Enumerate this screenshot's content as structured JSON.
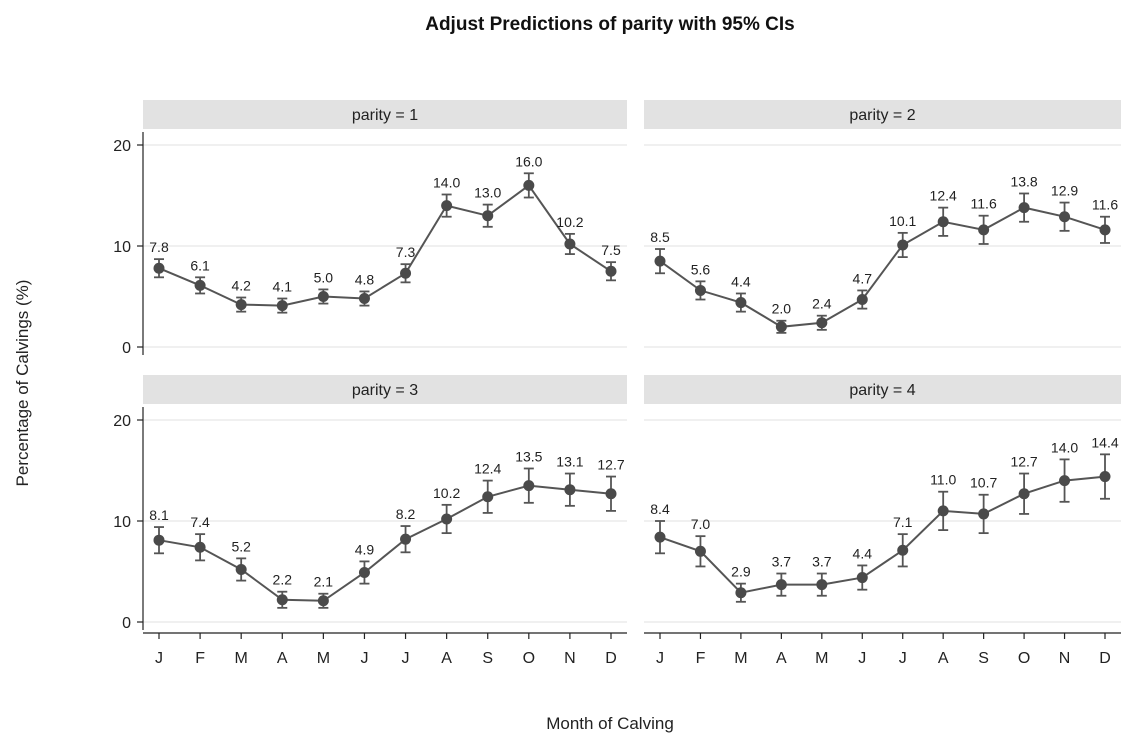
{
  "chart_data": {
    "type": "line",
    "title": "Adjust Predictions of parity with 95% CIs",
    "xlabel": "Month of Calving",
    "ylabel": "Percentage of Calvings (%)",
    "ylim": [
      0,
      20
    ],
    "yticks": [
      0,
      10,
      20
    ],
    "categories": [
      "J",
      "F",
      "M",
      "A",
      "M",
      "J",
      "J",
      "A",
      "S",
      "O",
      "N",
      "D"
    ],
    "grid": true,
    "colors": {
      "line": "#555555",
      "marker": "#4a4a4a",
      "strip": "#e2e2e2",
      "grid": "#ececec"
    },
    "panels": [
      {
        "label": "parity = 1",
        "values": [
          7.8,
          6.1,
          4.2,
          4.1,
          5.0,
          4.8,
          7.3,
          14.0,
          13.0,
          16.0,
          10.2,
          7.5
        ],
        "value_labels": [
          "7.8",
          "6.1",
          "4.2",
          "4.1",
          "5.0",
          "4.8",
          "7.3",
          "14.0",
          "13.0",
          "16.0",
          "10.2",
          "7.5"
        ],
        "ci_lower": [
          6.9,
          5.3,
          3.5,
          3.4,
          4.3,
          4.1,
          6.4,
          12.9,
          11.9,
          14.8,
          9.2,
          6.6
        ],
        "ci_upper": [
          8.7,
          6.9,
          4.9,
          4.8,
          5.7,
          5.5,
          8.2,
          15.1,
          14.1,
          17.2,
          11.2,
          8.4
        ]
      },
      {
        "label": "parity = 2",
        "values": [
          8.5,
          5.6,
          4.4,
          2.0,
          2.4,
          4.7,
          10.1,
          12.4,
          11.6,
          13.8,
          12.9,
          11.6
        ],
        "value_labels": [
          "8.5",
          "5.6",
          "4.4",
          "2.0",
          "2.4",
          "4.7",
          "10.1",
          "12.4",
          "11.6",
          "13.8",
          "12.9",
          "11.6"
        ],
        "ci_lower": [
          7.3,
          4.7,
          3.5,
          1.4,
          1.7,
          3.8,
          8.9,
          11.0,
          10.2,
          12.4,
          11.5,
          10.3
        ],
        "ci_upper": [
          9.7,
          6.5,
          5.3,
          2.6,
          3.1,
          5.6,
          11.3,
          13.8,
          13.0,
          15.2,
          14.3,
          12.9
        ]
      },
      {
        "label": "parity = 3",
        "values": [
          8.1,
          7.4,
          5.2,
          2.2,
          2.1,
          4.9,
          8.2,
          10.2,
          12.4,
          13.5,
          13.1,
          12.7
        ],
        "value_labels": [
          "8.1",
          "7.4",
          "5.2",
          "2.2",
          "2.1",
          "4.9",
          "8.2",
          "10.2",
          "12.4",
          "13.5",
          "13.1",
          "12.7"
        ],
        "ci_lower": [
          6.8,
          6.1,
          4.1,
          1.4,
          1.4,
          3.8,
          6.9,
          8.8,
          10.8,
          11.8,
          11.5,
          11.0
        ],
        "ci_upper": [
          9.4,
          8.7,
          6.3,
          3.0,
          2.8,
          6.0,
          9.5,
          11.6,
          14.0,
          15.2,
          14.7,
          14.4
        ]
      },
      {
        "label": "parity = 4",
        "values": [
          8.4,
          7.0,
          2.9,
          3.7,
          3.7,
          4.4,
          7.1,
          11.0,
          10.7,
          12.7,
          14.0,
          14.4
        ],
        "value_labels": [
          "8.4",
          "7.0",
          "2.9",
          "3.7",
          "3.7",
          "4.4",
          "7.1",
          "11.0",
          "10.7",
          "12.7",
          "14.0",
          "14.4"
        ],
        "ci_lower": [
          6.8,
          5.5,
          2.0,
          2.6,
          2.6,
          3.2,
          5.5,
          9.1,
          8.8,
          10.7,
          11.9,
          12.2
        ],
        "ci_upper": [
          10.0,
          8.5,
          3.8,
          4.8,
          4.8,
          5.6,
          8.7,
          12.9,
          12.6,
          14.7,
          16.1,
          16.6
        ]
      }
    ]
  }
}
